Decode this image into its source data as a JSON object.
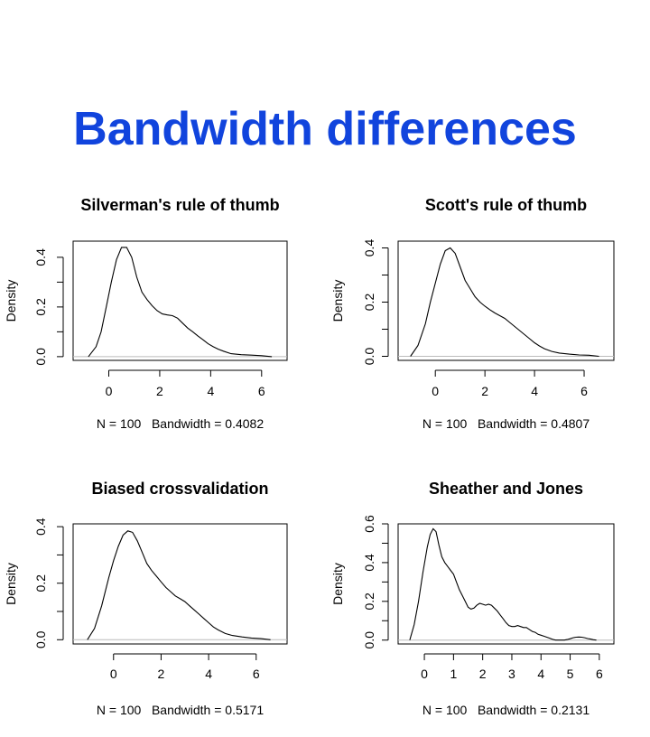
{
  "slide": {
    "title": "Bandwidth differences",
    "title_color": "#1144dd"
  },
  "chart_data": [
    {
      "type": "line",
      "title": "Silverman's rule of thumb",
      "ylabel": "Density",
      "xlabel": "N = 100   Bandwidth = 0.4082",
      "x_ticks": [
        0,
        2,
        4,
        6
      ],
      "y_ticks": [
        "0.0",
        "0.2",
        "0.4"
      ],
      "xlim": [
        -1.4,
        7.0
      ],
      "ylim": [
        -0.015,
        0.465
      ],
      "baseline_color": "#bbbbbb",
      "series": [
        {
          "x": [
            -0.8,
            -0.5,
            -0.3,
            -0.1,
            0.1,
            0.3,
            0.5,
            0.7,
            0.9,
            1.1,
            1.3,
            1.5,
            1.7,
            1.9,
            2.1,
            2.3,
            2.5,
            2.7,
            2.9,
            3.1,
            3.3,
            3.5,
            3.7,
            3.9,
            4.1,
            4.3,
            4.5,
            4.8,
            5.2,
            5.6,
            6.0,
            6.4
          ],
          "y": [
            0.0,
            0.04,
            0.1,
            0.2,
            0.3,
            0.39,
            0.44,
            0.44,
            0.4,
            0.32,
            0.26,
            0.23,
            0.205,
            0.185,
            0.172,
            0.168,
            0.165,
            0.155,
            0.135,
            0.115,
            0.1,
            0.083,
            0.068,
            0.052,
            0.04,
            0.03,
            0.022,
            0.012,
            0.008,
            0.006,
            0.004,
            0.0
          ]
        }
      ]
    },
    {
      "type": "line",
      "title": "Scott's rule of thumb",
      "ylabel": "Density",
      "xlabel": "N = 100   Bandwidth = 0.4807",
      "x_ticks": [
        0,
        2,
        4,
        6
      ],
      "y_ticks": [
        "0.0",
        "0.2",
        "0.4"
      ],
      "xlim": [
        -1.5,
        7.2
      ],
      "ylim": [
        -0.015,
        0.425
      ],
      "baseline_color": "#bbbbbb",
      "series": [
        {
          "x": [
            -1.0,
            -0.7,
            -0.4,
            -0.2,
            0.0,
            0.2,
            0.4,
            0.6,
            0.8,
            1.0,
            1.2,
            1.4,
            1.6,
            1.8,
            2.0,
            2.2,
            2.4,
            2.6,
            2.8,
            3.0,
            3.2,
            3.4,
            3.6,
            3.8,
            4.0,
            4.2,
            4.4,
            4.7,
            5.0,
            5.4,
            5.8,
            6.2,
            6.6
          ],
          "y": [
            0.0,
            0.04,
            0.12,
            0.2,
            0.27,
            0.34,
            0.39,
            0.4,
            0.38,
            0.33,
            0.28,
            0.25,
            0.22,
            0.2,
            0.185,
            0.172,
            0.16,
            0.15,
            0.14,
            0.125,
            0.11,
            0.095,
            0.08,
            0.065,
            0.05,
            0.038,
            0.028,
            0.018,
            0.012,
            0.008,
            0.005,
            0.004,
            0.0
          ]
        }
      ]
    },
    {
      "type": "line",
      "title": "Biased crossvalidation",
      "ylabel": "Density",
      "xlabel": "N = 100   Bandwidth = 0.5171",
      "x_ticks": [
        0,
        2,
        4,
        6
      ],
      "y_ticks": [
        "0.0",
        "0.2",
        "0.4"
      ],
      "xlim": [
        -1.7,
        7.3
      ],
      "ylim": [
        -0.015,
        0.41
      ],
      "baseline_color": "#bbbbbb",
      "series": [
        {
          "x": [
            -1.1,
            -0.8,
            -0.5,
            -0.2,
            0.0,
            0.2,
            0.4,
            0.6,
            0.8,
            1.0,
            1.2,
            1.4,
            1.6,
            1.8,
            2.0,
            2.2,
            2.4,
            2.6,
            2.8,
            3.0,
            3.2,
            3.4,
            3.6,
            3.8,
            4.0,
            4.2,
            4.4,
            4.7,
            5.0,
            5.4,
            5.8,
            6.2,
            6.6
          ],
          "y": [
            0.0,
            0.04,
            0.12,
            0.22,
            0.28,
            0.33,
            0.37,
            0.385,
            0.38,
            0.35,
            0.31,
            0.27,
            0.245,
            0.225,
            0.205,
            0.185,
            0.17,
            0.155,
            0.145,
            0.135,
            0.12,
            0.105,
            0.09,
            0.075,
            0.06,
            0.045,
            0.035,
            0.022,
            0.015,
            0.01,
            0.006,
            0.004,
            0.0
          ]
        }
      ]
    },
    {
      "type": "line",
      "title": "Sheather and Jones",
      "ylabel": "Density",
      "xlabel": "N = 100   Bandwidth = 0.2131",
      "x_ticks": [
        0,
        1,
        2,
        3,
        4,
        5,
        6
      ],
      "y_ticks": [
        "0.0",
        "0.2",
        "0.4",
        "0.6"
      ],
      "xlim": [
        -0.9,
        6.5
      ],
      "ylim": [
        -0.02,
        0.6
      ],
      "baseline_color": "#bbbbbb",
      "series": [
        {
          "x": [
            -0.5,
            -0.35,
            -0.2,
            -0.05,
            0.1,
            0.2,
            0.3,
            0.4,
            0.5,
            0.6,
            0.7,
            0.8,
            0.9,
            1.0,
            1.1,
            1.2,
            1.3,
            1.4,
            1.5,
            1.6,
            1.7,
            1.8,
            1.9,
            2.0,
            2.1,
            2.2,
            2.3,
            2.4,
            2.5,
            2.6,
            2.7,
            2.8,
            2.9,
            3.0,
            3.1,
            3.2,
            3.3,
            3.4,
            3.5,
            3.6,
            3.7,
            3.8,
            3.9,
            4.0,
            4.1,
            4.2,
            4.3,
            4.4,
            4.5,
            4.6,
            4.7,
            4.8,
            4.9,
            5.0,
            5.1,
            5.2,
            5.3,
            5.4,
            5.5,
            5.6,
            5.7,
            5.8,
            5.9
          ],
          "y": [
            0.0,
            0.08,
            0.2,
            0.35,
            0.48,
            0.545,
            0.575,
            0.56,
            0.49,
            0.43,
            0.4,
            0.38,
            0.36,
            0.34,
            0.3,
            0.26,
            0.23,
            0.2,
            0.17,
            0.16,
            0.165,
            0.18,
            0.19,
            0.185,
            0.18,
            0.185,
            0.18,
            0.165,
            0.15,
            0.13,
            0.11,
            0.09,
            0.075,
            0.07,
            0.07,
            0.075,
            0.07,
            0.065,
            0.065,
            0.055,
            0.045,
            0.04,
            0.03,
            0.025,
            0.02,
            0.015,
            0.01,
            0.004,
            0.0,
            0.0,
            0.0,
            0.0,
            0.003,
            0.007,
            0.012,
            0.015,
            0.016,
            0.015,
            0.012,
            0.008,
            0.005,
            0.002,
            0.0
          ]
        }
      ]
    }
  ]
}
